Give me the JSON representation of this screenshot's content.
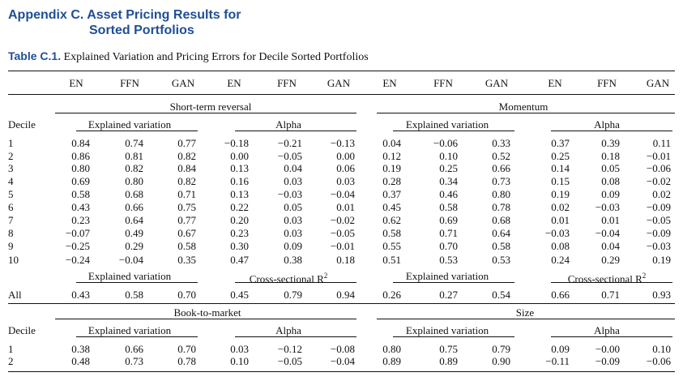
{
  "heading": {
    "line1": "Appendix C. Asset Pricing Results for",
    "line2": "Sorted Portfolios"
  },
  "caption": {
    "label": "Table C.1.",
    "text": "Explained Variation and Pricing Errors for Decile Sorted Portfolios"
  },
  "model_headers": [
    "EN",
    "FFN",
    "GAN",
    "EN",
    "FFN",
    "GAN",
    "EN",
    "FFN",
    "GAN",
    "EN",
    "FFN",
    "GAN"
  ],
  "panels": {
    "str": "Short-term reversal",
    "mom": "Momentum",
    "btm": "Book-to-market",
    "size": "Size"
  },
  "labels": {
    "decile": "Decile",
    "ev": "Explained variation",
    "alpha": "Alpha",
    "csr2": "Cross-sectional R",
    "sup2": "2",
    "all": "All"
  },
  "rows": [
    {
      "d": "1",
      "v": [
        "0.84",
        "0.74",
        "0.77",
        "−0.18",
        "−0.21",
        "−0.13",
        "0.04",
        "−0.06",
        "0.33",
        "0.37",
        "0.39",
        "0.11"
      ]
    },
    {
      "d": "2",
      "v": [
        "0.86",
        "0.81",
        "0.82",
        "0.00",
        "−0.05",
        "0.00",
        "0.12",
        "0.10",
        "0.52",
        "0.25",
        "0.18",
        "−0.01"
      ]
    },
    {
      "d": "3",
      "v": [
        "0.80",
        "0.82",
        "0.84",
        "0.13",
        "0.04",
        "0.06",
        "0.19",
        "0.25",
        "0.66",
        "0.14",
        "0.05",
        "−0.06"
      ]
    },
    {
      "d": "4",
      "v": [
        "0.69",
        "0.80",
        "0.82",
        "0.16",
        "0.03",
        "0.03",
        "0.28",
        "0.34",
        "0.73",
        "0.15",
        "0.08",
        "−0.02"
      ]
    },
    {
      "d": "5",
      "v": [
        "0.58",
        "0.68",
        "0.71",
        "0.13",
        "−0.03",
        "−0.04",
        "0.37",
        "0.46",
        "0.80",
        "0.19",
        "0.09",
        "0.02"
      ]
    },
    {
      "d": "6",
      "v": [
        "0.43",
        "0.66",
        "0.75",
        "0.22",
        "0.05",
        "0.01",
        "0.45",
        "0.58",
        "0.78",
        "0.02",
        "−0.03",
        "−0.09"
      ]
    },
    {
      "d": "7",
      "v": [
        "0.23",
        "0.64",
        "0.77",
        "0.20",
        "0.03",
        "−0.02",
        "0.62",
        "0.69",
        "0.68",
        "0.01",
        "0.01",
        "−0.05"
      ]
    },
    {
      "d": "8",
      "v": [
        "−0.07",
        "0.49",
        "0.67",
        "0.23",
        "0.03",
        "−0.05",
        "0.58",
        "0.71",
        "0.64",
        "−0.03",
        "−0.04",
        "−0.09"
      ]
    },
    {
      "d": "9",
      "v": [
        "−0.25",
        "0.29",
        "0.58",
        "0.30",
        "0.09",
        "−0.01",
        "0.55",
        "0.70",
        "0.58",
        "0.08",
        "0.04",
        "−0.03"
      ]
    },
    {
      "d": "10",
      "v": [
        "−0.24",
        "−0.04",
        "0.35",
        "0.47",
        "0.38",
        "0.18",
        "0.51",
        "0.53",
        "0.53",
        "0.24",
        "0.29",
        "0.19"
      ]
    }
  ],
  "all_row": [
    "0.43",
    "0.58",
    "0.70",
    "0.45",
    "0.79",
    "0.94",
    "0.26",
    "0.27",
    "0.54",
    "0.66",
    "0.71",
    "0.93"
  ],
  "rows2": [
    {
      "d": "1",
      "v": [
        "0.38",
        "0.66",
        "0.70",
        "0.03",
        "−0.12",
        "−0.08",
        "0.80",
        "0.75",
        "0.79",
        "0.09",
        "−0.00",
        "0.10"
      ]
    },
    {
      "d": "2",
      "v": [
        "0.48",
        "0.73",
        "0.78",
        "0.10",
        "−0.05",
        "−0.04",
        "0.89",
        "0.89",
        "0.90",
        "−0.11",
        "−0.09",
        "−0.06"
      ]
    }
  ]
}
